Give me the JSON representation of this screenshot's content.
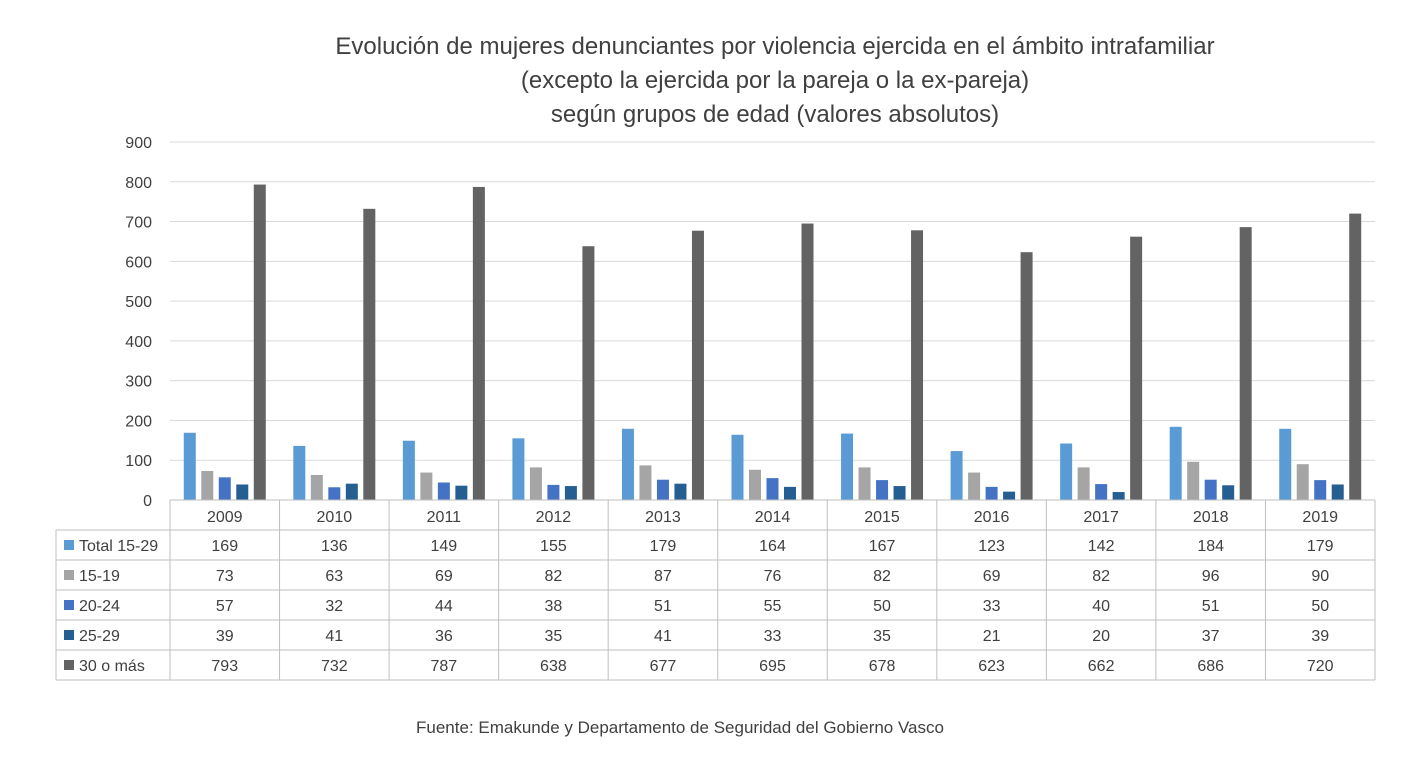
{
  "chart_data": {
    "type": "bar",
    "title_lines": [
      "Evolución de mujeres denunciantes por violencia ejercida en el ámbito intrafamiliar",
      "(excepto la ejercida por la pareja o la ex-pareja)",
      "según grupos de edad (valores absolutos)"
    ],
    "categories": [
      "2009",
      "2010",
      "2011",
      "2012",
      "2013",
      "2014",
      "2015",
      "2016",
      "2017",
      "2018",
      "2019"
    ],
    "series": [
      {
        "name": "Total 15-29",
        "color": "#5b9bd5",
        "values": [
          169,
          136,
          149,
          155,
          179,
          164,
          167,
          123,
          142,
          184,
          179
        ]
      },
      {
        "name": "15-19",
        "color": "#a5a5a5",
        "values": [
          73,
          63,
          69,
          82,
          87,
          76,
          82,
          69,
          82,
          96,
          90
        ]
      },
      {
        "name": "20-24",
        "color": "#4472c4",
        "values": [
          57,
          32,
          44,
          38,
          51,
          55,
          50,
          33,
          40,
          51,
          50
        ]
      },
      {
        "name": "25-29",
        "color": "#255e91",
        "values": [
          39,
          41,
          36,
          35,
          41,
          33,
          35,
          21,
          20,
          37,
          39
        ]
      },
      {
        "name": "30 o más",
        "color": "#636363",
        "values": [
          793,
          732,
          787,
          638,
          677,
          695,
          678,
          623,
          662,
          686,
          720
        ]
      }
    ],
    "yticks": [
      "0",
      "100",
      "200",
      "300",
      "400",
      "500",
      "600",
      "700",
      "800",
      "900"
    ],
    "ylim": [
      0,
      900
    ],
    "data_table": true
  },
  "source": "Fuente: Emakunde y Departamento de Seguridad del Gobierno Vasco",
  "colors": {
    "gridline": "#d9d9d9",
    "table_border": "#bfbfbf",
    "text": "#404040"
  }
}
